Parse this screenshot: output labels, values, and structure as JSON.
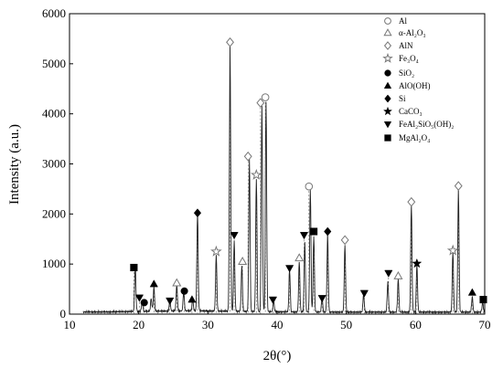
{
  "chart_data": {
    "type": "line",
    "xlabel": "2θ(°)",
    "ylabel": "Intensity (a.u.)",
    "xlim": [
      10,
      70
    ],
    "ylim": [
      0,
      6000
    ],
    "x_ticks": [
      10,
      20,
      30,
      40,
      50,
      60,
      70
    ],
    "y_ticks": [
      0,
      1000,
      2000,
      3000,
      4000,
      5000,
      6000
    ],
    "legend_placement": "top-right",
    "legend": [
      {
        "symbol": "circle-open",
        "label": "Al"
      },
      {
        "symbol": "triangle-open",
        "label": "α-Al₂O₃"
      },
      {
        "symbol": "diamond-open",
        "label": "AlN"
      },
      {
        "symbol": "star-open",
        "label": "Fe₃O₄"
      },
      {
        "symbol": "circle",
        "label": "SiO₂"
      },
      {
        "symbol": "triangle",
        "label": "AlO(OH)"
      },
      {
        "symbol": "diamond",
        "label": "Si"
      },
      {
        "symbol": "star",
        "label": "CaCO₃"
      },
      {
        "symbol": "triangle-down",
        "label": "FeAl₂SiO₅(OH)₂"
      },
      {
        "symbol": "square",
        "label": "MgAl₂O₄"
      }
    ],
    "baseline": 40,
    "peaks": [
      {
        "x": 19.5,
        "y": 900
      },
      {
        "x": 20.5,
        "y": 220
      },
      {
        "x": 21.8,
        "y": 250
      },
      {
        "x": 22.2,
        "y": 480
      },
      {
        "x": 24.5,
        "y": 200
      },
      {
        "x": 25.5,
        "y": 520
      },
      {
        "x": 26.5,
        "y": 380
      },
      {
        "x": 27.8,
        "y": 230
      },
      {
        "x": 28.5,
        "y": 1950
      },
      {
        "x": 31.2,
        "y": 1100
      },
      {
        "x": 33.2,
        "y": 5300
      },
      {
        "x": 33.8,
        "y": 1400
      },
      {
        "x": 34.9,
        "y": 900
      },
      {
        "x": 36.0,
        "y": 3050
      },
      {
        "x": 37.0,
        "y": 2650
      },
      {
        "x": 37.8,
        "y": 4100
      },
      {
        "x": 38.4,
        "y": 4200
      },
      {
        "x": 39.5,
        "y": 220
      },
      {
        "x": 41.8,
        "y": 850
      },
      {
        "x": 43.2,
        "y": 1000
      },
      {
        "x": 44.0,
        "y": 1400
      },
      {
        "x": 44.8,
        "y": 2450
      },
      {
        "x": 45.3,
        "y": 1500
      },
      {
        "x": 46.5,
        "y": 280
      },
      {
        "x": 47.3,
        "y": 1550
      },
      {
        "x": 49.8,
        "y": 1350
      },
      {
        "x": 52.5,
        "y": 350
      },
      {
        "x": 56.0,
        "y": 600
      },
      {
        "x": 57.5,
        "y": 650
      },
      {
        "x": 59.4,
        "y": 2150
      },
      {
        "x": 60.2,
        "y": 950
      },
      {
        "x": 65.4,
        "y": 1200
      },
      {
        "x": 66.2,
        "y": 2450
      },
      {
        "x": 68.2,
        "y": 300
      },
      {
        "x": 69.7,
        "y": 200
      }
    ],
    "markers": [
      {
        "x": 19.3,
        "y": 930,
        "symbol": "square"
      },
      {
        "x": 20.1,
        "y": 330,
        "symbol": "triangle-down"
      },
      {
        "x": 20.8,
        "y": 230,
        "symbol": "circle"
      },
      {
        "x": 22.2,
        "y": 600,
        "symbol": "triangle"
      },
      {
        "x": 24.5,
        "y": 270,
        "symbol": "triangle-down"
      },
      {
        "x": 25.5,
        "y": 620,
        "symbol": "triangle-open"
      },
      {
        "x": 26.6,
        "y": 460,
        "symbol": "circle"
      },
      {
        "x": 27.7,
        "y": 290,
        "symbol": "triangle"
      },
      {
        "x": 28.5,
        "y": 2020,
        "symbol": "diamond"
      },
      {
        "x": 31.2,
        "y": 1250,
        "symbol": "star-open"
      },
      {
        "x": 33.2,
        "y": 5430,
        "symbol": "diamond-open"
      },
      {
        "x": 33.8,
        "y": 1580,
        "symbol": "triangle-down"
      },
      {
        "x": 35.0,
        "y": 1050,
        "symbol": "triangle-open"
      },
      {
        "x": 35.8,
        "y": 3150,
        "symbol": "diamond-open"
      },
      {
        "x": 37.0,
        "y": 2780,
        "symbol": "star-open"
      },
      {
        "x": 37.6,
        "y": 4220,
        "symbol": "diamond-open"
      },
      {
        "x": 38.3,
        "y": 4330,
        "symbol": "circle-open"
      },
      {
        "x": 39.4,
        "y": 290,
        "symbol": "triangle-down"
      },
      {
        "x": 41.8,
        "y": 920,
        "symbol": "triangle-down"
      },
      {
        "x": 43.2,
        "y": 1120,
        "symbol": "triangle-open"
      },
      {
        "x": 43.9,
        "y": 1580,
        "symbol": "triangle-down"
      },
      {
        "x": 44.6,
        "y": 2550,
        "symbol": "circle-open"
      },
      {
        "x": 45.3,
        "y": 1650,
        "symbol": "square"
      },
      {
        "x": 46.5,
        "y": 320,
        "symbol": "triangle-down"
      },
      {
        "x": 47.3,
        "y": 1650,
        "symbol": "diamond"
      },
      {
        "x": 49.8,
        "y": 1480,
        "symbol": "diamond-open"
      },
      {
        "x": 52.6,
        "y": 420,
        "symbol": "triangle-down"
      },
      {
        "x": 56.1,
        "y": 820,
        "symbol": "triangle-down"
      },
      {
        "x": 57.5,
        "y": 760,
        "symbol": "triangle-open"
      },
      {
        "x": 59.4,
        "y": 2240,
        "symbol": "diamond-open"
      },
      {
        "x": 60.2,
        "y": 1010,
        "symbol": "star"
      },
      {
        "x": 65.4,
        "y": 1270,
        "symbol": "star-open"
      },
      {
        "x": 66.2,
        "y": 2560,
        "symbol": "diamond-open"
      },
      {
        "x": 68.2,
        "y": 430,
        "symbol": "triangle"
      },
      {
        "x": 69.8,
        "y": 290,
        "symbol": "square"
      }
    ]
  }
}
